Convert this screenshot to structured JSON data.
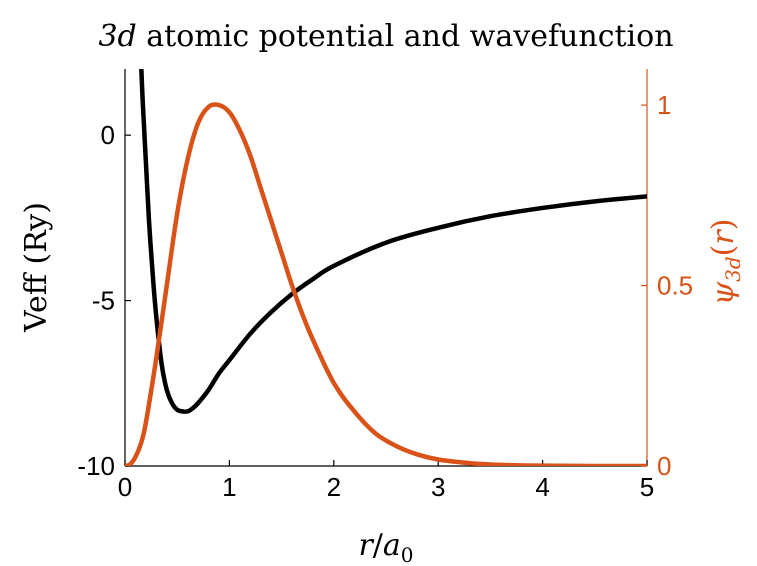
{
  "chart_data": {
    "type": "line",
    "title": "3d atomic potential and wavefunction",
    "xlabel": "r/a0",
    "xlim": [
      0,
      5
    ],
    "xticks": [
      0,
      1,
      2,
      3,
      4,
      5
    ],
    "xtick_labels": [
      "0",
      "1",
      "2",
      "3",
      "4",
      "5"
    ],
    "left_axis": {
      "ylabel": "Veff (Ry)",
      "ylim": [
        -10,
        2
      ],
      "yticks": [
        -10,
        -5,
        0
      ],
      "ytick_labels": [
        "-10",
        "-5",
        "0"
      ],
      "color": "#000000"
    },
    "right_axis": {
      "ylabel": "ψ3d(r)",
      "ylim": [
        0,
        1.1
      ],
      "yticks": [
        0,
        0.5,
        1
      ],
      "ytick_labels": [
        "0",
        "0.5",
        "1"
      ],
      "color": "#D95319"
    },
    "series": [
      {
        "axis": "left",
        "color": "#000000",
        "x": [
          0.15,
          0.17,
          0.2,
          0.23,
          0.27,
          0.3,
          0.35,
          0.4,
          0.45,
          0.5,
          0.55,
          0.6,
          0.65,
          0.7,
          0.8,
          0.9,
          1.0,
          1.2,
          1.4,
          1.6,
          1.8,
          2.0,
          2.5,
          3.0,
          3.5,
          4.0,
          4.5,
          5.0
        ],
        "values": [
          2.5,
          1.0,
          -0.8,
          -2.6,
          -4.4,
          -5.5,
          -6.9,
          -7.7,
          -8.1,
          -8.3,
          -8.35,
          -8.35,
          -8.25,
          -8.1,
          -7.7,
          -7.2,
          -6.8,
          -6.0,
          -5.35,
          -4.8,
          -4.35,
          -3.95,
          -3.25,
          -2.8,
          -2.45,
          -2.2,
          -2.0,
          -1.85
        ]
      },
      {
        "axis": "right",
        "color": "#D95319",
        "x": [
          0.0,
          0.05,
          0.1,
          0.15,
          0.2,
          0.3,
          0.4,
          0.5,
          0.6,
          0.7,
          0.8,
          0.9,
          1.0,
          1.1,
          1.2,
          1.3,
          1.4,
          1.5,
          1.6,
          1.7,
          1.8,
          2.0,
          2.2,
          2.4,
          2.6,
          2.8,
          3.0,
          3.3,
          3.6,
          4.0,
          4.5,
          5.0
        ],
        "values": [
          0.0,
          0.005,
          0.025,
          0.06,
          0.12,
          0.3,
          0.5,
          0.7,
          0.85,
          0.95,
          0.995,
          1.0,
          0.98,
          0.93,
          0.86,
          0.77,
          0.68,
          0.59,
          0.5,
          0.42,
          0.35,
          0.23,
          0.15,
          0.09,
          0.055,
          0.032,
          0.018,
          0.008,
          0.003,
          0.001,
          0.0,
          0.0
        ]
      }
    ]
  }
}
